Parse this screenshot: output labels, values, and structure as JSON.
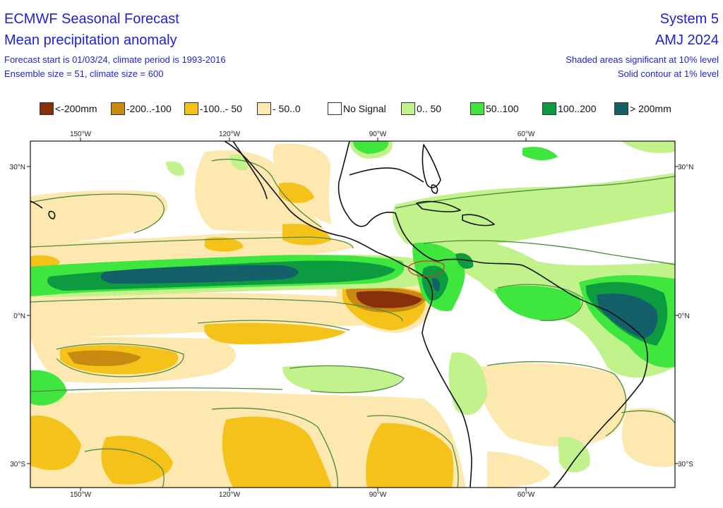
{
  "header": {
    "title": "ECMWF Seasonal Forecast",
    "subtitle": "Mean precipitation anomaly",
    "forecast_info": "Forecast start is 01/03/24, climate period is 1993-2016",
    "ensemble_info": "Ensemble size = 51, climate size = 600",
    "system": "System 5",
    "season": "AMJ 2024",
    "shade_note": "Shaded areas significant at 10% level",
    "contour_note": "Solid contour at 1% level"
  },
  "legend": [
    {
      "label": "<-200mm",
      "color": "#8a2f0c"
    },
    {
      "label": "-200..-100",
      "color": "#c88a10"
    },
    {
      "label": "-100..- 50",
      "color": "#f5c21a"
    },
    {
      "label": "- 50..0",
      "color": "#fde8b0"
    },
    {
      "label": "No Signal",
      "color": "#ffffff"
    },
    {
      "label": "0.. 50",
      "color": "#c2f28c"
    },
    {
      "label": "50..100",
      "color": "#3ee63e"
    },
    {
      "label": "100..200",
      "color": "#0d9b3f"
    },
    {
      "label": "> 200mm",
      "color": "#135f6a"
    }
  ],
  "axes": {
    "lon_ticks": [
      "150°W",
      "120°W",
      "90°W",
      "60°W"
    ],
    "lat_ticks": [
      "30°N",
      "0°N",
      "30°S"
    ]
  },
  "colors": {
    "coast": "#111111",
    "contour": "#4f8a3f",
    "region_box": "#e03030",
    "header_text": "#1f1fd6"
  }
}
